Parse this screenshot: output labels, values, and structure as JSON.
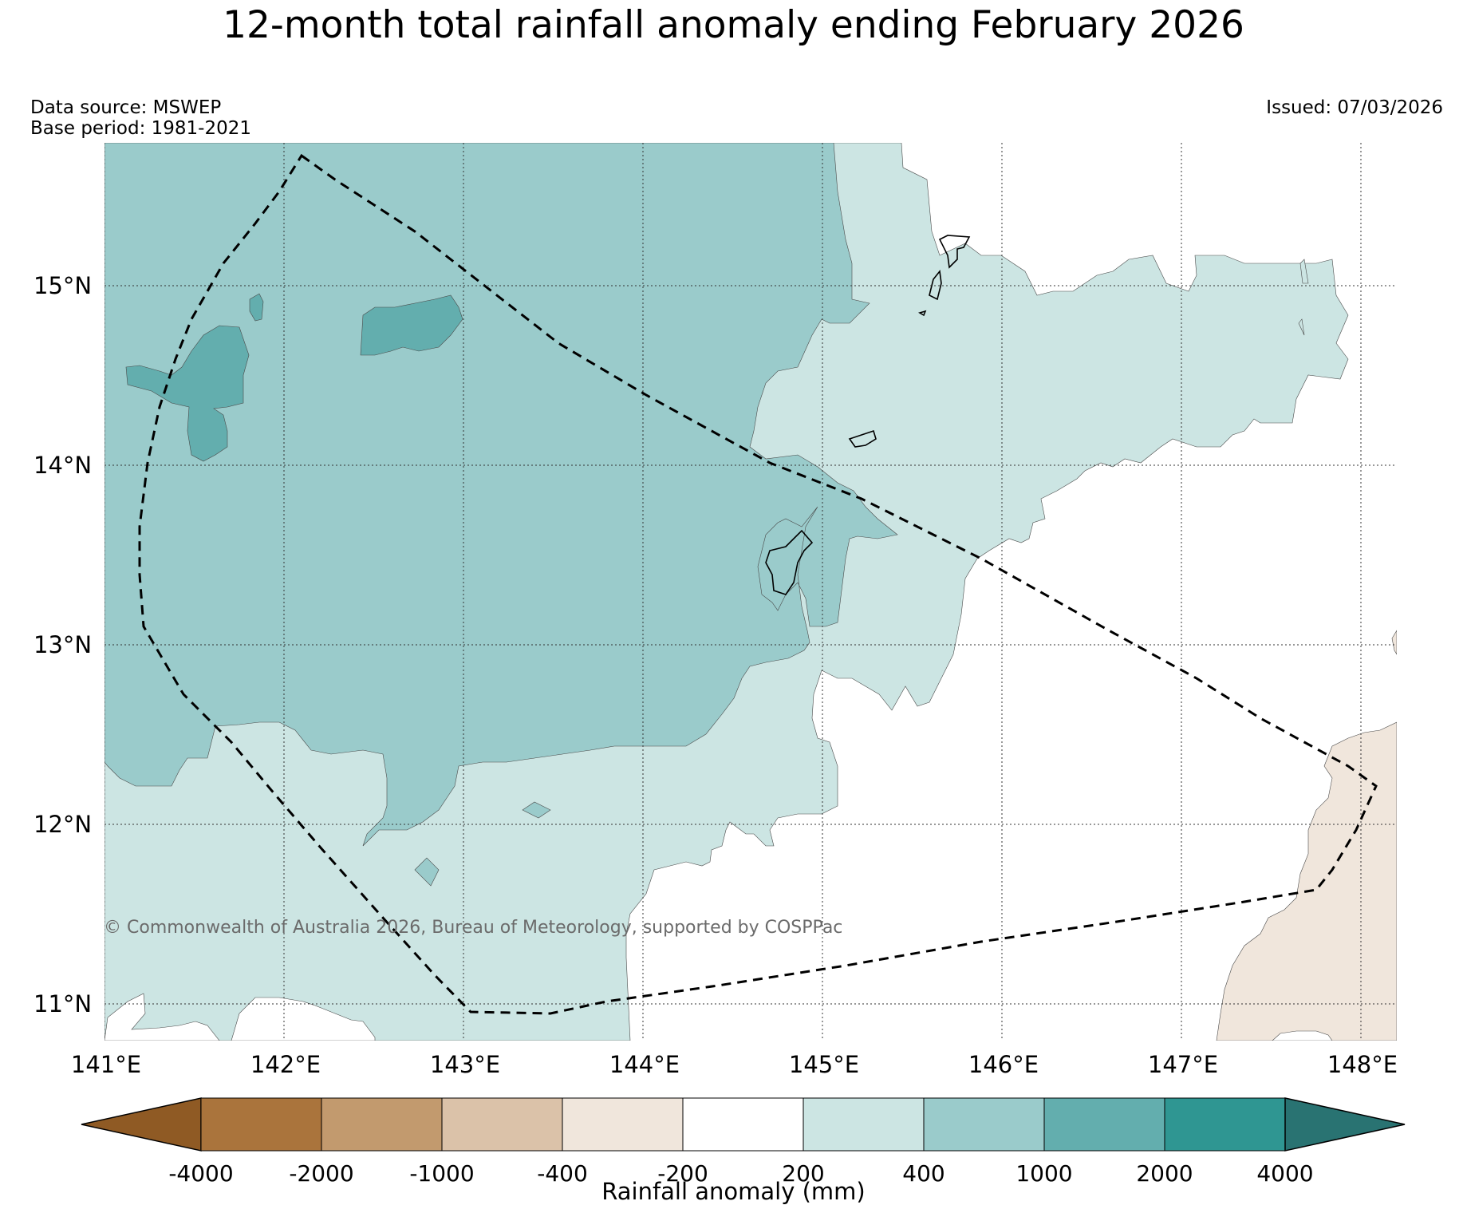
{
  "title": "12-month total rainfall anomaly ending February 2026",
  "meta": {
    "data_source": "Data source: MSWEP",
    "base_period": "Base period: 1981-2021",
    "issued": "Issued: 07/03/2026"
  },
  "copyright": "© Commonwealth of Australia 2026, Bureau of Meteorology, supported by COSPPac",
  "axes": {
    "lat_labels": [
      "15°N",
      "14°N",
      "13°N",
      "12°N",
      "11°N"
    ],
    "lon_labels": [
      "141°E",
      "142°E",
      "143°E",
      "144°E",
      "145°E",
      "146°E",
      "147°E",
      "148°E"
    ]
  },
  "colorbar": {
    "title": "Rainfall anomaly (mm)",
    "tick_labels": [
      "-4000",
      "-2000",
      "-1000",
      "-400",
      "-200",
      "200",
      "400",
      "1000",
      "2000",
      "4000"
    ],
    "colors": [
      "#8f5a24",
      "#aa743c",
      "#c29a6e",
      "#dbc2a9",
      "#f0e6dc",
      "#ffffff",
      "#cce5e3",
      "#9acbcb",
      "#63aeae",
      "#2f9692",
      "#297372"
    ]
  },
  "map_colors": {
    "band_200_400": "#cce5e3",
    "band_400_1000": "#9acbcb",
    "band_1000_2000": "#63aeae",
    "band_neg_400_200": "#f0e6dc",
    "outline": "#000000"
  }
}
